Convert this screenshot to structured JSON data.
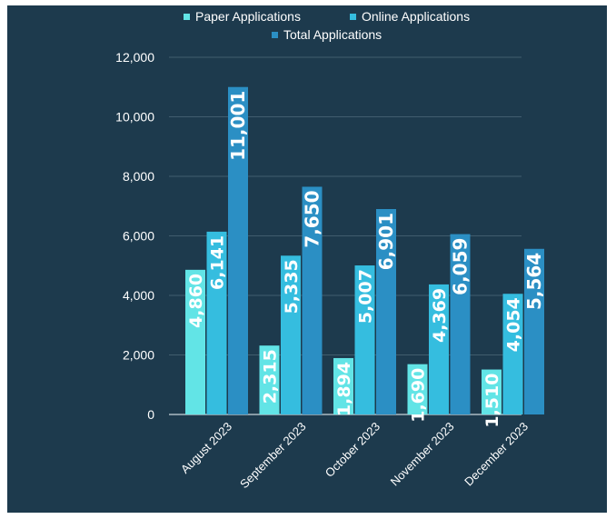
{
  "chart_data": {
    "type": "bar",
    "categories": [
      "August 2023",
      "September 2023",
      "October 2023",
      "November 2023",
      "December 2023"
    ],
    "series": [
      {
        "name": "Paper Applications",
        "values": [
          4860,
          2315,
          1894,
          1690,
          1510
        ],
        "labels": [
          "4,860",
          "2,315",
          "1,894",
          "1,690",
          "1,510"
        ],
        "color": "#62e4e6"
      },
      {
        "name": "Online Applications",
        "values": [
          6141,
          5335,
          5007,
          4369,
          4054
        ],
        "labels": [
          "6,141",
          "5,335",
          "5,007",
          "4,369",
          "4,054"
        ],
        "color": "#35bddf"
      },
      {
        "name": "Total Applications",
        "values": [
          11001,
          7650,
          6901,
          6059,
          5564
        ],
        "labels": [
          "11,001",
          "7,650",
          "6,901",
          "6,059",
          "5,564"
        ],
        "color": "#2b8fc4"
      }
    ],
    "ylim": [
      0,
      12000
    ],
    "yticks": [
      "0",
      "2,000",
      "4,000",
      "6,000",
      "8,000",
      "10,000",
      "12,000"
    ],
    "ytick_values": [
      0,
      2000,
      4000,
      6000,
      8000,
      10000,
      12000
    ],
    "grid": true,
    "legend_position": "top-center",
    "background": "#1d3a4d"
  }
}
